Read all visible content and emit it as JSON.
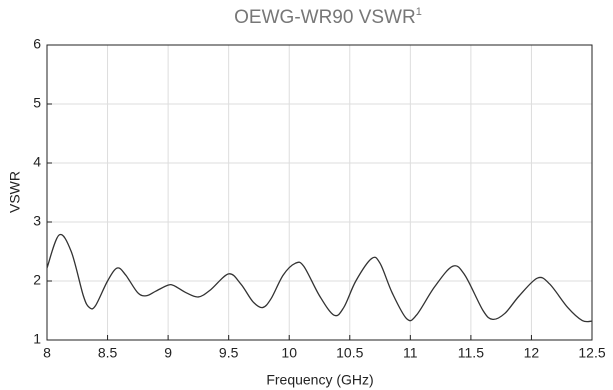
{
  "chart_data": {
    "type": "line",
    "title": "OEWG-WR90 VSWR",
    "title_superscript": "1",
    "xlabel": "Frequency (GHz)",
    "ylabel": "VSWR",
    "x": [
      8.0,
      8.1,
      8.2,
      8.3,
      8.35,
      8.4,
      8.5,
      8.58,
      8.65,
      8.75,
      8.82,
      8.9,
      9.0,
      9.05,
      9.15,
      9.25,
      9.35,
      9.5,
      9.6,
      9.7,
      9.78,
      9.85,
      9.95,
      10.05,
      10.12,
      10.25,
      10.37,
      10.45,
      10.55,
      10.68,
      10.75,
      10.85,
      10.97,
      11.05,
      11.2,
      11.35,
      11.45,
      11.6,
      11.68,
      11.78,
      11.9,
      12.05,
      12.15,
      12.3,
      12.42,
      12.5
    ],
    "series": [
      {
        "name": "VSWR",
        "color": "#333333",
        "values": [
          2.22,
          2.78,
          2.5,
          1.75,
          1.55,
          1.58,
          2.0,
          2.22,
          2.1,
          1.8,
          1.75,
          1.83,
          1.93,
          1.92,
          1.8,
          1.73,
          1.85,
          2.12,
          1.95,
          1.65,
          1.55,
          1.7,
          2.1,
          2.3,
          2.25,
          1.75,
          1.42,
          1.55,
          2.0,
          2.38,
          2.3,
          1.8,
          1.36,
          1.42,
          1.9,
          2.25,
          2.1,
          1.5,
          1.35,
          1.45,
          1.75,
          2.05,
          1.95,
          1.55,
          1.33,
          1.32
        ]
      }
    ],
    "xlim": [
      8,
      12.5
    ],
    "xticks": [
      8,
      8.5,
      9,
      9.5,
      10,
      10.5,
      11,
      11.5,
      12,
      12.5
    ],
    "ylim": [
      1,
      6
    ],
    "yticks": [
      1,
      2,
      3,
      4,
      5,
      6
    ],
    "grid": true
  }
}
